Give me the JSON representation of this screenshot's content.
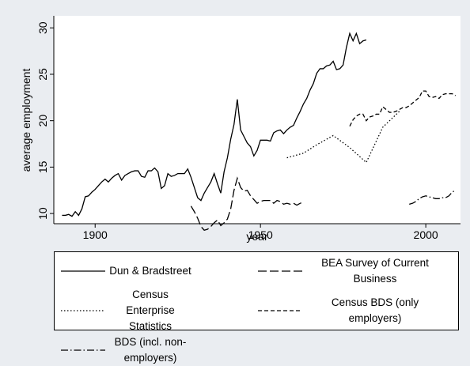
{
  "chart_data": {
    "type": "line",
    "x_label": "year",
    "y_label": "average employment",
    "xlim": [
      1887.5,
      2010.5
    ],
    "ylim": [
      8.9,
      31.3
    ],
    "xticks": [
      1900,
      1950,
      2000
    ],
    "yticks": [
      10,
      15,
      20,
      25,
      30
    ],
    "grid": false,
    "legend": "bottom",
    "series": [
      {
        "name": "Dun & Bradstreet",
        "color": "#000000",
        "linestyle": "solid",
        "x": [
          1890,
          1891,
          1892,
          1893,
          1894,
          1895,
          1896,
          1897,
          1898,
          1899,
          1900,
          1901,
          1902,
          1903,
          1904,
          1905,
          1906,
          1907,
          1908,
          1909,
          1910,
          1911,
          1912,
          1913,
          1914,
          1915,
          1916,
          1917,
          1918,
          1919,
          1920,
          1921,
          1922,
          1923,
          1924,
          1925,
          1926,
          1927,
          1928,
          1929,
          1930,
          1931,
          1932,
          1933,
          1934,
          1935,
          1936,
          1937,
          1938,
          1939,
          1940,
          1941,
          1942,
          1943,
          1944,
          1945,
          1946,
          1947,
          1948,
          1949,
          1950,
          1951,
          1952,
          1953,
          1954,
          1955,
          1956,
          1957,
          1958,
          1959,
          1960,
          1961,
          1962,
          1963,
          1964,
          1965,
          1966,
          1967,
          1968,
          1969,
          1970,
          1971,
          1972,
          1973,
          1974,
          1975,
          1976,
          1977,
          1978,
          1979,
          1980,
          1981,
          1982
        ],
        "values": [
          9.8,
          9.8,
          9.9,
          9.7,
          10.2,
          9.8,
          10.5,
          11.8,
          11.9,
          12.3,
          12.6,
          13.0,
          13.4,
          13.7,
          13.4,
          13.8,
          14.1,
          14.3,
          13.6,
          14.1,
          14.3,
          14.5,
          14.6,
          14.6,
          14.0,
          13.9,
          14.6,
          14.6,
          14.9,
          14.5,
          12.7,
          13.0,
          14.3,
          14.0,
          14.1,
          14.3,
          14.3,
          14.3,
          14.8,
          13.9,
          12.8,
          11.7,
          11.4,
          12.2,
          12.8,
          13.4,
          14.3,
          13.2,
          12.2,
          14.5,
          16.0,
          18.0,
          19.6,
          22.3,
          19.0,
          18.3,
          17.6,
          17.2,
          16.2,
          16.8,
          17.9,
          17.9,
          17.9,
          17.8,
          18.7,
          18.9,
          19.0,
          18.6,
          19.0,
          19.3,
          19.5,
          20.3,
          21.0,
          21.8,
          22.4,
          23.3,
          24.0,
          25.1,
          25.6,
          25.6,
          25.9,
          26.0,
          26.4,
          25.5,
          25.6,
          26.0,
          27.9,
          29.4,
          28.6,
          29.4,
          28.3,
          28.6,
          28.7
        ]
      },
      {
        "name": "BEA Survey of Current Business",
        "color": "#000000",
        "linestyle": "longdash",
        "x": [
          1929,
          1930,
          1931,
          1932,
          1933,
          1934,
          1935,
          1936,
          1937,
          1938,
          1939,
          1940,
          1941,
          1942,
          1943,
          1944,
          1945,
          1946,
          1947,
          1948,
          1949,
          1950,
          1951,
          1952,
          1953,
          1954,
          1955,
          1956,
          1957,
          1958,
          1959,
          1960,
          1961,
          1962,
          1963
        ],
        "values": [
          10.8,
          10.2,
          9.5,
          8.6,
          8.2,
          8.3,
          8.6,
          9.0,
          9.3,
          8.7,
          9.0,
          9.4,
          10.5,
          12.5,
          13.8,
          12.8,
          12.4,
          12.5,
          11.9,
          11.5,
          11.1,
          11.3,
          11.4,
          11.4,
          11.4,
          11.1,
          11.4,
          11.3,
          11.0,
          11.1,
          11.0,
          11.1,
          10.9,
          11.1,
          11.2
        ]
      },
      {
        "name": "Census Enterprise Statistics",
        "color": "#000000",
        "linestyle": "dot",
        "x": [
          1958,
          1963,
          1967,
          1972,
          1977,
          1982,
          1987,
          1992
        ],
        "values": [
          16.0,
          16.5,
          17.4,
          18.4,
          17.1,
          15.5,
          19.3,
          21.0
        ]
      },
      {
        "name": "Census BDS (only employers)",
        "color": "#000000",
        "linestyle": "dash",
        "x": [
          1977,
          1978,
          1979,
          1980,
          1981,
          1982,
          1983,
          1984,
          1985,
          1986,
          1987,
          1988,
          1989,
          1990,
          1991,
          1992,
          1993,
          1994,
          1995,
          1996,
          1997,
          1998,
          1999,
          2000,
          2001,
          2002,
          2003,
          2004,
          2005,
          2006,
          2007,
          2008,
          2009
        ],
        "values": [
          19.4,
          20.1,
          20.5,
          20.7,
          20.7,
          20.0,
          20.4,
          20.5,
          20.7,
          20.7,
          21.5,
          21.2,
          20.9,
          20.9,
          21.0,
          21.2,
          21.4,
          21.4,
          21.6,
          21.9,
          22.2,
          22.5,
          23.2,
          23.2,
          22.6,
          22.5,
          22.6,
          22.4,
          22.8,
          22.9,
          22.9,
          22.9,
          22.7
        ]
      },
      {
        "name": "BDS (incl. non-employers)",
        "color": "#000000",
        "linestyle": "dashdot",
        "x": [
          1995,
          1996,
          1997,
          1998,
          1999,
          2000,
          2001,
          2002,
          2003,
          2004,
          2005,
          2006,
          2007,
          2008,
          2009
        ],
        "values": [
          11.0,
          11.1,
          11.3,
          11.6,
          11.8,
          11.9,
          11.8,
          11.7,
          11.6,
          11.6,
          11.7,
          11.7,
          11.9,
          12.3,
          12.5
        ]
      }
    ]
  }
}
